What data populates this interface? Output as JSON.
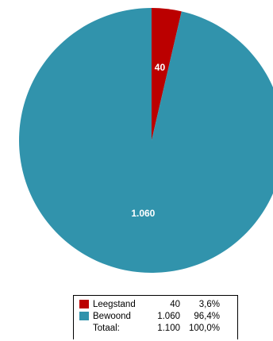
{
  "chart_data": {
    "type": "pie",
    "title": "",
    "start_angle_deg": 0,
    "direction": "clockwise",
    "slices": [
      {
        "label": "Leegstand",
        "value": 40,
        "value_label": "40",
        "percent": "3,6%",
        "color": "#bb0000"
      },
      {
        "label": "Bewoond",
        "value": 1060,
        "value_label": "1.060",
        "percent": "96,4%",
        "color": "#3193ac"
      }
    ],
    "legend": {
      "position": "bottom",
      "total_label": "Totaal:",
      "total_value": "1.100",
      "total_percent": "100,0%"
    }
  }
}
